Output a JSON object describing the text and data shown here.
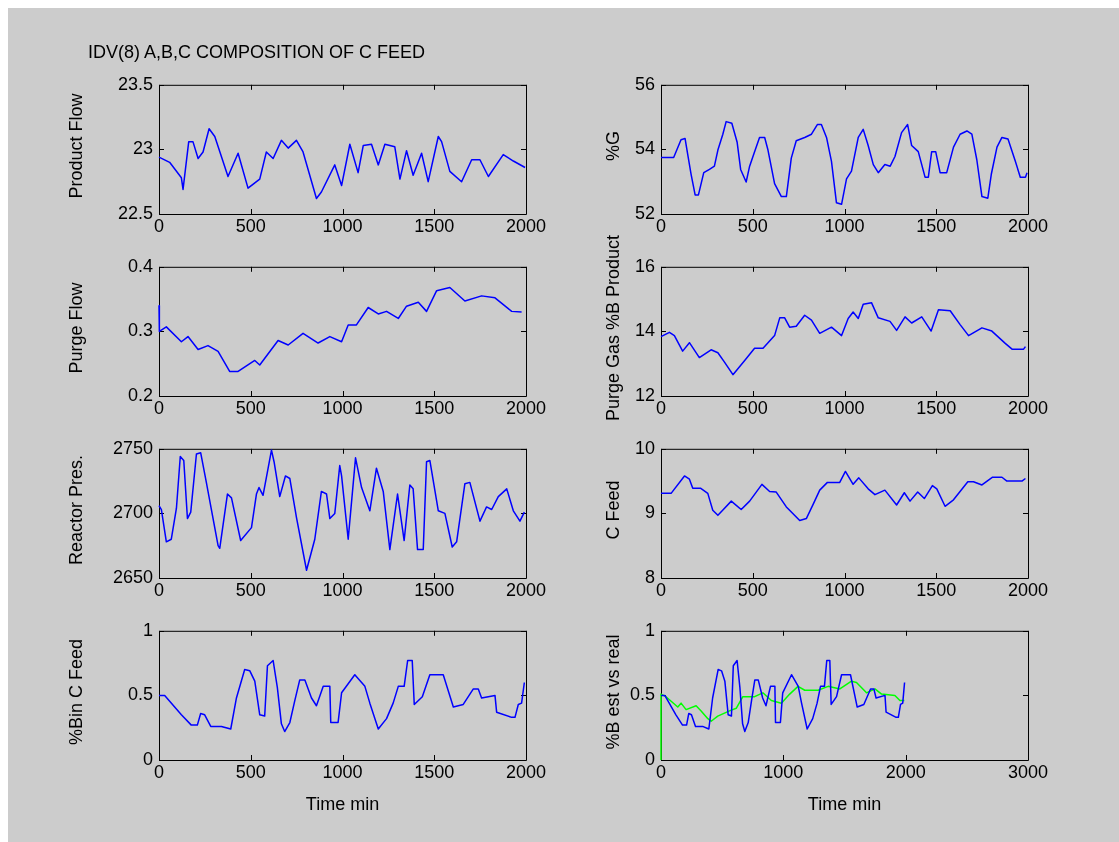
{
  "chart_data": [
    {
      "type": "line",
      "title": "IDV(8) A,B,C COMPOSITION OF C FEED",
      "ylabel": "Product Flow",
      "xlim": [
        0,
        2000
      ],
      "xticks": [
        0,
        500,
        1000,
        1500,
        2000
      ],
      "ylim": [
        22.5,
        23.5
      ],
      "yticks": [
        22.5,
        23,
        23.5
      ],
      "series": [
        {
          "color": "#0000ff",
          "x": [
            0,
            58,
            122,
            131,
            162,
            185,
            213,
            240,
            273,
            304,
            376,
            431,
            485,
            549,
            585,
            622,
            667,
            704,
            749,
            785,
            858,
            885,
            958,
            995,
            1040,
            1085,
            1113,
            1158,
            1195,
            1231,
            1285,
            1313,
            1349,
            1385,
            1431,
            1467,
            1522,
            1540,
            1585,
            1649,
            1704,
            1749,
            1795,
            1876,
            1931,
            1995
          ],
          "values": [
            22.94,
            22.9,
            22.78,
            22.69,
            23.06,
            23.06,
            22.93,
            22.98,
            23.16,
            23.1,
            22.79,
            22.97,
            22.7,
            22.77,
            22.98,
            22.93,
            23.07,
            23.01,
            23.07,
            22.98,
            22.62,
            22.67,
            22.88,
            22.72,
            23.04,
            22.82,
            23.03,
            23.04,
            22.88,
            23.04,
            23.02,
            22.77,
            22.99,
            22.8,
            22.97,
            22.75,
            23.1,
            23.06,
            22.83,
            22.75,
            22.92,
            22.92,
            22.79,
            22.96,
            22.91,
            22.86
          ]
        }
      ]
    },
    {
      "type": "line",
      "ylabel": "%G",
      "xlim": [
        0,
        2000
      ],
      "xticks": [
        0,
        500,
        1000,
        1500,
        2000
      ],
      "ylim": [
        52,
        56
      ],
      "yticks": [
        52,
        54,
        56
      ],
      "series": [
        {
          "color": "#0000ff",
          "x": [
            0,
            69,
            82,
            109,
            131,
            146,
            164,
            186,
            204,
            233,
            264,
            291,
            310,
            337,
            355,
            386,
            415,
            434,
            464,
            483,
            510,
            537,
            565,
            583,
            619,
            656,
            683,
            710,
            737,
            783,
            820,
            852,
            874,
            902,
            929,
            956,
            984,
            1011,
            1038,
            1075,
            1102,
            1129,
            1157,
            1184,
            1220,
            1249,
            1275,
            1311,
            1344,
            1366,
            1402,
            1439,
            1457,
            1475,
            1497,
            1521,
            1557,
            1594,
            1630,
            1667,
            1694,
            1721,
            1749,
            1781,
            1800,
            1831,
            1858,
            1891,
            1931,
            1958,
            1986,
            1995
          ],
          "values": [
            53.75,
            53.75,
            53.93,
            54.3,
            54.34,
            53.83,
            53.23,
            52.59,
            52.59,
            53.28,
            53.38,
            53.48,
            53.98,
            54.47,
            54.86,
            54.81,
            54.22,
            53.38,
            52.99,
            53.48,
            53.93,
            54.37,
            54.37,
            53.98,
            52.94,
            52.54,
            52.54,
            53.73,
            54.27,
            54.37,
            54.47,
            54.77,
            54.77,
            54.37,
            53.63,
            52.35,
            52.3,
            53.09,
            53.33,
            54.37,
            54.62,
            54.12,
            53.53,
            53.28,
            53.53,
            53.48,
            53.78,
            54.52,
            54.77,
            54.12,
            53.93,
            53.14,
            53.14,
            53.93,
            53.93,
            53.28,
            53.28,
            54.07,
            54.47,
            54.57,
            54.47,
            53.68,
            52.54,
            52.49,
            53.23,
            54.07,
            54.37,
            54.32,
            53.63,
            53.14,
            53.14,
            53.28
          ]
        }
      ]
    },
    {
      "type": "line",
      "ylabel": "Purge Flow",
      "xlim": [
        0,
        2000
      ],
      "xticks": [
        0,
        500,
        1000,
        1500,
        2000
      ],
      "ylim": [
        0.2,
        0.4
      ],
      "yticks": [
        0.2,
        0.3,
        0.4
      ],
      "series": [
        {
          "color": "#0000ff",
          "x": [
            0,
            2,
            40,
            122,
            158,
            213,
            267,
            322,
            385,
            431,
            522,
            549,
            649,
            704,
            785,
            867,
            931,
            995,
            1031,
            1076,
            1140,
            1195,
            1240,
            1304,
            1349,
            1413,
            1458,
            1513,
            1585,
            1667,
            1758,
            1831,
            1922,
            1976
          ],
          "values": [
            0.34,
            0.3,
            0.307,
            0.284,
            0.292,
            0.272,
            0.278,
            0.269,
            0.238,
            0.238,
            0.255,
            0.248,
            0.286,
            0.279,
            0.297,
            0.282,
            0.292,
            0.284,
            0.31,
            0.31,
            0.337,
            0.327,
            0.331,
            0.32,
            0.339,
            0.345,
            0.331,
            0.363,
            0.368,
            0.347,
            0.355,
            0.352,
            0.331,
            0.33
          ]
        }
      ]
    },
    {
      "type": "line",
      "ylabel": "Purge Gas %B Product",
      "xlim": [
        0,
        2000
      ],
      "xticks": [
        0,
        500,
        1000,
        1500,
        2000
      ],
      "ylim": [
        12,
        16
      ],
      "yticks": [
        12,
        14,
        16
      ],
      "series": [
        {
          "color": "#0000ff",
          "x": [
            0,
            46,
            73,
            118,
            155,
            209,
            273,
            310,
            346,
            392,
            455,
            510,
            556,
            619,
            647,
            674,
            701,
            737,
            783,
            820,
            865,
            929,
            984,
            1020,
            1047,
            1075,
            1102,
            1147,
            1184,
            1248,
            1284,
            1330,
            1366,
            1421,
            1472,
            1512,
            1576,
            1630,
            1676,
            1749,
            1803,
            1876,
            1913,
            1976,
            1986
          ],
          "values": [
            13.84,
            13.97,
            13.87,
            13.39,
            13.65,
            13.19,
            13.43,
            13.34,
            13.05,
            12.66,
            13.09,
            13.48,
            13.48,
            13.87,
            14.42,
            14.42,
            14.13,
            14.16,
            14.5,
            14.35,
            13.94,
            14.13,
            13.87,
            14.4,
            14.6,
            14.4,
            14.84,
            14.89,
            14.42,
            14.31,
            14.03,
            14.45,
            14.26,
            14.45,
            14.01,
            14.67,
            14.64,
            14.21,
            13.87,
            14.11,
            14.01,
            13.63,
            13.45,
            13.45,
            13.53
          ]
        }
      ]
    },
    {
      "type": "line",
      "ylabel": "Reactor Pres.",
      "xlim": [
        0,
        2000
      ],
      "xticks": [
        0,
        500,
        1000,
        1500,
        2000
      ],
      "ylim": [
        2650,
        2750
      ],
      "yticks": [
        2650,
        2700,
        2750
      ],
      "series": [
        {
          "color": "#0000ff",
          "x": [
            0,
            13,
            40,
            67,
            95,
            116,
            135,
            155,
            173,
            204,
            227,
            258,
            322,
            331,
            373,
            395,
            445,
            504,
            531,
            545,
            567,
            613,
            627,
            658,
            689,
            713,
            749,
            804,
            849,
            885,
            913,
            931,
            958,
            985,
            995,
            1031,
            1071,
            1104,
            1149,
            1185,
            1222,
            1258,
            1300,
            1336,
            1367,
            1385,
            1409,
            1440,
            1458,
            1476,
            1522,
            1558,
            1598,
            1622,
            1667,
            1694,
            1749,
            1785,
            1813,
            1849,
            1895,
            1931,
            1967,
            1991
          ],
          "values": [
            2706,
            2703,
            2678,
            2680,
            2704,
            2744,
            2741,
            2696,
            2701,
            2746,
            2747,
            2724,
            2675,
            2673,
            2715,
            2712,
            2679,
            2689,
            2715,
            2720,
            2714,
            2749,
            2740,
            2713,
            2729,
            2727,
            2697,
            2656,
            2680,
            2717,
            2715,
            2696,
            2700,
            2737,
            2729,
            2680,
            2743,
            2720,
            2702,
            2735,
            2717,
            2672,
            2715,
            2679,
            2722,
            2719,
            2672,
            2672,
            2740,
            2741,
            2702,
            2700,
            2674,
            2678,
            2723,
            2724,
            2694,
            2705,
            2703,
            2713,
            2719,
            2702,
            2694,
            2701
          ]
        }
      ]
    },
    {
      "type": "line",
      "ylabel": "C Feed",
      "xlim": [
        0,
        2000
      ],
      "xticks": [
        0,
        500,
        1000,
        1500,
        2000
      ],
      "ylim": [
        8,
        10
      ],
      "yticks": [
        8,
        9,
        10
      ],
      "series": [
        {
          "color": "#0000ff",
          "x": [
            0,
            55,
            128,
            155,
            173,
            215,
            255,
            282,
            310,
            383,
            437,
            483,
            550,
            592,
            628,
            683,
            756,
            792,
            829,
            865,
            907,
            974,
            1005,
            1047,
            1078,
            1129,
            1166,
            1220,
            1284,
            1326,
            1357,
            1399,
            1435,
            1479,
            1503,
            1548,
            1594,
            1672,
            1703,
            1749,
            1807,
            1858,
            1885,
            1967,
            1986
          ],
          "values": [
            9.31,
            9.31,
            9.58,
            9.53,
            9.39,
            9.39,
            9.31,
            9.05,
            8.97,
            9.19,
            9.06,
            9.19,
            9.45,
            9.34,
            9.33,
            9.1,
            8.89,
            8.92,
            9.14,
            9.36,
            9.48,
            9.48,
            9.65,
            9.45,
            9.55,
            9.38,
            9.29,
            9.36,
            9.13,
            9.32,
            9.19,
            9.33,
            9.23,
            9.43,
            9.38,
            9.11,
            9.21,
            9.49,
            9.49,
            9.44,
            9.56,
            9.56,
            9.5,
            9.5,
            9.54
          ]
        }
      ]
    },
    {
      "type": "line",
      "ylabel": "%Bin C Feed",
      "xlabel": "Time min",
      "xlim": [
        0,
        2000
      ],
      "xticks": [
        0,
        500,
        1000,
        1500,
        2000
      ],
      "ylim": [
        0,
        1
      ],
      "yticks": [
        0,
        0.5,
        1
      ],
      "series": [
        {
          "color": "#0000ff",
          "x": [
            0,
            31,
            122,
            176,
            209,
            227,
            249,
            282,
            340,
            391,
            422,
            467,
            495,
            522,
            549,
            576,
            591,
            622,
            645,
            667,
            685,
            713,
            740,
            767,
            795,
            831,
            858,
            895,
            931,
            936,
            976,
            995,
            1067,
            1122,
            1149,
            1195,
            1240,
            1276,
            1304,
            1336,
            1355,
            1380,
            1391,
            1435,
            1476,
            1549,
            1604,
            1658,
            1713,
            1740,
            1758,
            1831,
            1840,
            1922,
            1940,
            1958,
            1976,
            1991
          ],
          "values": [
            0.5,
            0.5,
            0.35,
            0.27,
            0.27,
            0.36,
            0.35,
            0.26,
            0.26,
            0.24,
            0.48,
            0.7,
            0.69,
            0.61,
            0.35,
            0.34,
            0.73,
            0.77,
            0.56,
            0.28,
            0.22,
            0.29,
            0.46,
            0.62,
            0.62,
            0.48,
            0.42,
            0.57,
            0.57,
            0.29,
            0.29,
            0.52,
            0.66,
            0.57,
            0.44,
            0.24,
            0.32,
            0.44,
            0.57,
            0.57,
            0.77,
            0.77,
            0.43,
            0.49,
            0.66,
            0.66,
            0.41,
            0.43,
            0.55,
            0.55,
            0.48,
            0.5,
            0.37,
            0.33,
            0.33,
            0.43,
            0.44,
            0.6
          ]
        }
      ]
    },
    {
      "type": "line",
      "ylabel": "%B est vs real",
      "xlabel": "Time min",
      "xlim": [
        0,
        3000
      ],
      "xticks": [
        0,
        1000,
        2000,
        3000
      ],
      "ylim": [
        0,
        1
      ],
      "yticks": [
        0,
        0.5,
        1
      ],
      "series": [
        {
          "color": "#0000ff",
          "x": [
            0,
            31,
            122,
            176,
            209,
            227,
            249,
            282,
            340,
            391,
            422,
            467,
            495,
            522,
            549,
            576,
            591,
            622,
            645,
            667,
            685,
            713,
            740,
            767,
            795,
            831,
            858,
            895,
            931,
            936,
            976,
            995,
            1067,
            1122,
            1149,
            1195,
            1240,
            1276,
            1304,
            1336,
            1355,
            1380,
            1391,
            1435,
            1476,
            1549,
            1604,
            1658,
            1713,
            1740,
            1758,
            1831,
            1840,
            1922,
            1940,
            1958,
            1976,
            1991
          ],
          "values": [
            0.5,
            0.5,
            0.35,
            0.27,
            0.27,
            0.36,
            0.35,
            0.26,
            0.26,
            0.24,
            0.48,
            0.7,
            0.69,
            0.61,
            0.35,
            0.34,
            0.73,
            0.77,
            0.56,
            0.28,
            0.22,
            0.29,
            0.46,
            0.62,
            0.62,
            0.48,
            0.42,
            0.57,
            0.57,
            0.29,
            0.29,
            0.52,
            0.66,
            0.57,
            0.44,
            0.24,
            0.32,
            0.44,
            0.57,
            0.57,
            0.77,
            0.77,
            0.43,
            0.49,
            0.66,
            0.66,
            0.41,
            0.43,
            0.55,
            0.55,
            0.48,
            0.5,
            0.37,
            0.33,
            0.33,
            0.43,
            0.44,
            0.6
          ]
        },
        {
          "color": "#00ff00",
          "x": [
            0,
            0,
            41,
            137,
            164,
            205,
            287,
            328,
            383,
            410,
            464,
            560,
            615,
            669,
            765,
            833,
            902,
            984,
            1052,
            1120,
            1175,
            1284,
            1366,
            1462,
            1557,
            1598,
            1680,
            1749,
            1803,
            1912,
            1953,
            1989
          ],
          "values": [
            0,
            0.51,
            0.49,
            0.41,
            0.44,
            0.39,
            0.42,
            0.38,
            0.32,
            0.3,
            0.34,
            0.38,
            0.4,
            0.49,
            0.49,
            0.52,
            0.46,
            0.44,
            0.51,
            0.57,
            0.54,
            0.54,
            0.57,
            0.55,
            0.61,
            0.6,
            0.52,
            0.55,
            0.51,
            0.5,
            0.46,
            0.46
          ]
        }
      ]
    }
  ]
}
